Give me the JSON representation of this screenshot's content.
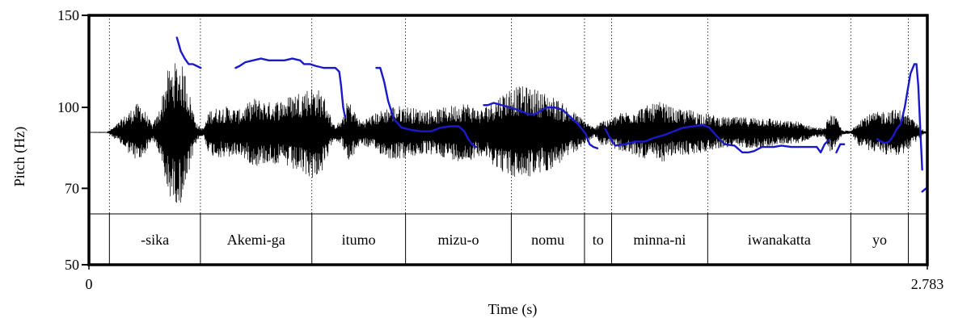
{
  "chart_data": {
    "type": "line",
    "xlabel": "Time (s)",
    "ylabel": "Pitch (Hz)",
    "xlim": [
      0,
      2.783
    ],
    "x_tick_labels": [
      "0",
      "2.783"
    ],
    "ylim": [
      50,
      150
    ],
    "y_ticks": [
      150,
      100,
      70,
      50
    ],
    "y_tick_labels": [
      "150",
      "100",
      "70",
      "50"
    ],
    "y_scale": "log",
    "grid": false,
    "colors": {
      "pitch": "#1a1acc",
      "waveform": "#000000",
      "frame": "#000000"
    },
    "segments": [
      {
        "label": "",
        "start": 0.0,
        "end": 0.068
      },
      {
        "label": "-sika",
        "start": 0.068,
        "end": 0.37
      },
      {
        "label": "Akemi-ga",
        "start": 0.37,
        "end": 0.74
      },
      {
        "label": "itumo",
        "start": 0.74,
        "end": 1.051
      },
      {
        "label": "mizu-o",
        "start": 1.051,
        "end": 1.402
      },
      {
        "label": "nomu",
        "start": 1.402,
        "end": 1.645
      },
      {
        "label": "to",
        "start": 1.645,
        "end": 1.735
      },
      {
        "label": "minna-ni",
        "start": 1.735,
        "end": 2.054
      },
      {
        "label": "iwanakatta",
        "start": 2.054,
        "end": 2.529
      },
      {
        "label": "yo",
        "start": 2.529,
        "end": 2.72
      },
      {
        "label": "",
        "start": 2.72,
        "end": 2.783
      }
    ],
    "series": [
      {
        "points": [
          [
            0.292,
            136
          ],
          [
            0.305,
            128
          ],
          [
            0.318,
            124
          ],
          [
            0.331,
            121
          ],
          [
            0.345,
            121
          ],
          [
            0.358,
            120
          ],
          [
            0.371,
            119
          ]
        ]
      },
      {
        "points": [
          [
            0.487,
            119
          ],
          [
            0.5,
            120
          ],
          [
            0.519,
            122
          ],
          [
            0.545,
            123
          ],
          [
            0.571,
            124
          ],
          [
            0.597,
            123
          ],
          [
            0.623,
            123
          ],
          [
            0.649,
            123
          ],
          [
            0.675,
            124
          ],
          [
            0.701,
            123
          ],
          [
            0.714,
            121
          ],
          [
            0.734,
            121
          ],
          [
            0.753,
            120
          ],
          [
            0.779,
            119
          ],
          [
            0.799,
            119
          ],
          [
            0.818,
            119
          ],
          [
            0.831,
            117
          ],
          [
            0.837,
            110
          ],
          [
            0.844,
            100
          ],
          [
            0.85,
            96
          ]
        ]
      },
      {
        "points": [
          [
            0.954,
            119
          ],
          [
            0.967,
            119
          ],
          [
            0.98,
            112
          ],
          [
            0.993,
            103
          ],
          [
            1.012,
            95
          ],
          [
            1.038,
            91.5
          ],
          [
            1.071,
            90.5
          ],
          [
            1.103,
            90
          ],
          [
            1.136,
            90
          ],
          [
            1.168,
            91.5
          ],
          [
            1.201,
            92
          ],
          [
            1.227,
            92
          ],
          [
            1.246,
            90
          ],
          [
            1.259,
            87
          ],
          [
            1.272,
            85
          ],
          [
            1.285,
            84
          ]
        ]
      },
      {
        "points": [
          [
            1.311,
            101
          ],
          [
            1.324,
            101
          ],
          [
            1.344,
            102
          ],
          [
            1.37,
            101
          ],
          [
            1.396,
            100
          ],
          [
            1.422,
            99
          ],
          [
            1.441,
            98
          ],
          [
            1.461,
            97
          ],
          [
            1.48,
            97
          ],
          [
            1.5,
            98.5
          ],
          [
            1.519,
            100
          ],
          [
            1.545,
            100
          ],
          [
            1.571,
            99
          ],
          [
            1.597,
            96
          ],
          [
            1.623,
            93
          ],
          [
            1.649,
            89
          ],
          [
            1.662,
            85
          ],
          [
            1.675,
            84
          ],
          [
            1.688,
            83.5
          ]
        ]
      },
      {
        "points": [
          [
            1.714,
            91
          ],
          [
            1.727,
            88
          ],
          [
            1.747,
            84.5
          ],
          [
            1.779,
            85
          ],
          [
            1.812,
            86
          ],
          [
            1.844,
            86
          ],
          [
            1.877,
            87.5
          ],
          [
            1.909,
            88.5
          ],
          [
            1.942,
            90
          ],
          [
            1.974,
            91.5
          ],
          [
            2.007,
            92
          ],
          [
            2.039,
            92.5
          ],
          [
            2.059,
            91.5
          ],
          [
            2.085,
            88
          ],
          [
            2.111,
            85
          ],
          [
            2.143,
            84.5
          ],
          [
            2.169,
            82
          ],
          [
            2.189,
            82
          ],
          [
            2.208,
            82.5
          ],
          [
            2.234,
            84
          ],
          [
            2.273,
            84
          ],
          [
            2.299,
            84.5
          ],
          [
            2.331,
            84
          ],
          [
            2.357,
            84
          ],
          [
            2.39,
            84
          ],
          [
            2.416,
            84
          ],
          [
            2.429,
            82
          ],
          [
            2.442,
            85
          ],
          [
            2.455,
            86.5
          ]
        ]
      },
      {
        "points": [
          [
            2.481,
            82
          ],
          [
            2.494,
            85
          ],
          [
            2.507,
            85
          ]
        ]
      },
      {
        "points": [
          [
            2.617,
            87
          ],
          [
            2.63,
            86
          ],
          [
            2.643,
            85.5
          ],
          [
            2.656,
            86
          ],
          [
            2.669,
            88
          ],
          [
            2.682,
            91
          ],
          [
            2.695,
            93
          ],
          [
            2.708,
            100
          ],
          [
            2.727,
            116
          ],
          [
            2.74,
            121
          ],
          [
            2.747,
            121
          ],
          [
            2.753,
            110
          ],
          [
            2.76,
            90
          ],
          [
            2.766,
            76
          ]
        ]
      },
      {
        "points": [
          [
            2.766,
            69
          ],
          [
            2.779,
            70
          ],
          [
            2.783,
            70
          ]
        ]
      }
    ],
    "waveform_envelope": [
      [
        0.0,
        0.002
      ],
      [
        0.06,
        0.003
      ],
      [
        0.09,
        0.1
      ],
      [
        0.15,
        0.35
      ],
      [
        0.17,
        0.4
      ],
      [
        0.19,
        0.25
      ],
      [
        0.21,
        0.1
      ],
      [
        0.23,
        0.25
      ],
      [
        0.26,
        0.8
      ],
      [
        0.28,
        0.9
      ],
      [
        0.3,
        0.95
      ],
      [
        0.32,
        0.8
      ],
      [
        0.34,
        0.4
      ],
      [
        0.36,
        0.1
      ],
      [
        0.38,
        0.05
      ],
      [
        0.4,
        0.3
      ],
      [
        0.45,
        0.35
      ],
      [
        0.5,
        0.3
      ],
      [
        0.55,
        0.45
      ],
      [
        0.6,
        0.4
      ],
      [
        0.65,
        0.45
      ],
      [
        0.7,
        0.55
      ],
      [
        0.74,
        0.6
      ],
      [
        0.77,
        0.55
      ],
      [
        0.79,
        0.4
      ],
      [
        0.81,
        0.1
      ],
      [
        0.84,
        0.15
      ],
      [
        0.86,
        0.45
      ],
      [
        0.88,
        0.3
      ],
      [
        0.9,
        0.15
      ],
      [
        0.95,
        0.25
      ],
      [
        1.0,
        0.35
      ],
      [
        1.05,
        0.35
      ],
      [
        1.1,
        0.3
      ],
      [
        1.15,
        0.3
      ],
      [
        1.2,
        0.35
      ],
      [
        1.25,
        0.4
      ],
      [
        1.3,
        0.3
      ],
      [
        1.35,
        0.45
      ],
      [
        1.4,
        0.6
      ],
      [
        1.45,
        0.6
      ],
      [
        1.5,
        0.55
      ],
      [
        1.55,
        0.45
      ],
      [
        1.6,
        0.3
      ],
      [
        1.65,
        0.15
      ],
      [
        1.68,
        0.05
      ],
      [
        1.7,
        0.2
      ],
      [
        1.72,
        0.15
      ],
      [
        1.76,
        0.25
      ],
      [
        1.8,
        0.3
      ],
      [
        1.85,
        0.35
      ],
      [
        1.9,
        0.4
      ],
      [
        1.95,
        0.3
      ],
      [
        2.0,
        0.3
      ],
      [
        2.05,
        0.25
      ],
      [
        2.1,
        0.2
      ],
      [
        2.15,
        0.2
      ],
      [
        2.2,
        0.2
      ],
      [
        2.25,
        0.2
      ],
      [
        2.3,
        0.15
      ],
      [
        2.35,
        0.15
      ],
      [
        2.4,
        0.08
      ],
      [
        2.44,
        0.05
      ],
      [
        2.46,
        0.25
      ],
      [
        2.48,
        0.2
      ],
      [
        2.5,
        0.03
      ],
      [
        2.53,
        0.02
      ],
      [
        2.56,
        0.2
      ],
      [
        2.6,
        0.25
      ],
      [
        2.65,
        0.3
      ],
      [
        2.7,
        0.3
      ],
      [
        2.74,
        0.15
      ],
      [
        2.77,
        0.03
      ],
      [
        2.783,
        0.002
      ]
    ]
  }
}
